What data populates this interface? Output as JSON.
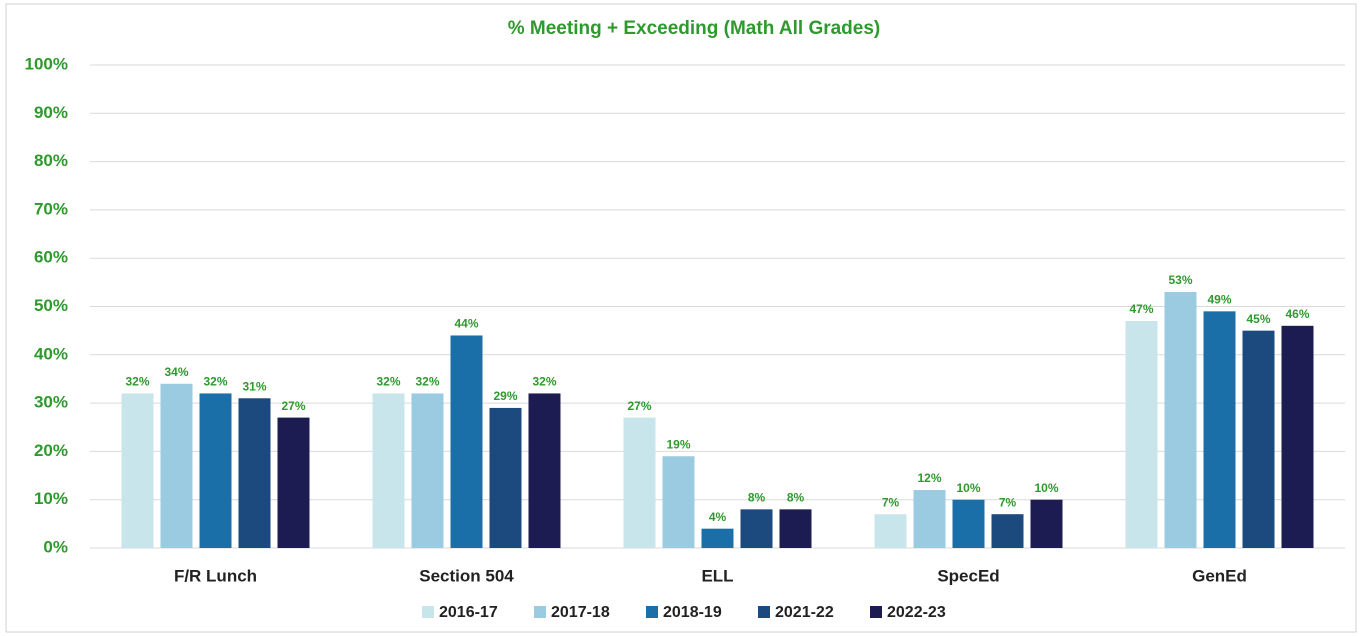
{
  "chart_data": {
    "type": "bar",
    "title": "% Meeting + Exceeding (Math All Grades)",
    "categories": [
      "F/R Lunch",
      "Section 504",
      "ELL",
      "SpecEd",
      "GenEd"
    ],
    "series": [
      {
        "name": "2016-17",
        "color": "#c8e5ec",
        "values": [
          32,
          32,
          27,
          7,
          47
        ],
        "value_labels": [
          "32%",
          "32%",
          "27%",
          "7%",
          "47%"
        ]
      },
      {
        "name": "2017-18",
        "color": "#9bcbe0",
        "values": [
          34,
          32,
          19,
          12,
          53
        ],
        "value_labels": [
          "34%",
          "32%",
          "19%",
          "12%",
          "53%"
        ]
      },
      {
        "name": "2018-19",
        "color": "#1b6fa8",
        "values": [
          32,
          44,
          4,
          10,
          49
        ],
        "value_labels": [
          "32%",
          "44%",
          "4%",
          "10%",
          "49%"
        ]
      },
      {
        "name": "2021-22",
        "color": "#1d4a7e",
        "values": [
          31,
          29,
          8,
          7,
          45
        ],
        "value_labels": [
          "31%",
          "29%",
          "8%",
          "7%",
          "45%"
        ]
      },
      {
        "name": "2022-23",
        "color": "#1c1c52",
        "values": [
          27,
          32,
          8,
          10,
          46
        ],
        "value_labels": [
          "27%",
          "32%",
          "8%",
          "10%",
          "46%"
        ]
      }
    ],
    "ylim": [
      0,
      100
    ],
    "yticks": [
      {
        "value": 0,
        "label": "0%"
      },
      {
        "value": 10,
        "label": "10%"
      },
      {
        "value": 20,
        "label": "20%"
      },
      {
        "value": 30,
        "label": "30%"
      },
      {
        "value": 40,
        "label": "40%"
      },
      {
        "value": 50,
        "label": "50%"
      },
      {
        "value": 60,
        "label": "60%"
      },
      {
        "value": 70,
        "label": "70%"
      },
      {
        "value": 80,
        "label": "80%"
      },
      {
        "value": 90,
        "label": "90%"
      },
      {
        "value": 100,
        "label": "100%"
      }
    ],
    "grid": true,
    "legend": "bottom"
  }
}
